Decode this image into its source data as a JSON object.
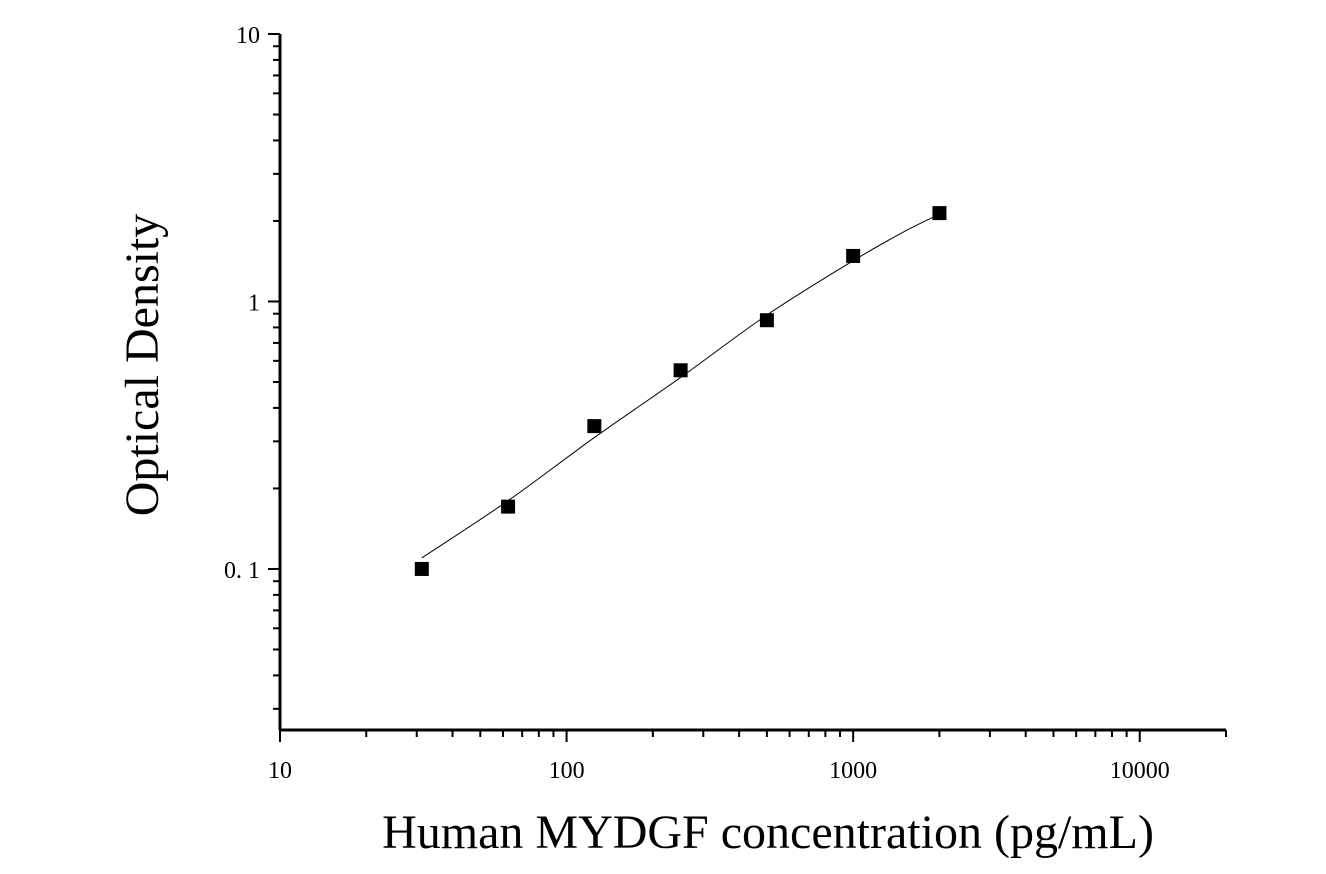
{
  "chart_data": {
    "type": "scatter",
    "xlabel": "Human MYDGF concentration (pg/mL)",
    "ylabel": "Optical Density",
    "xscale": "log",
    "yscale": "log",
    "xlim": [
      10,
      20000
    ],
    "ylim": [
      0.025,
      10
    ],
    "x_ticks": [
      {
        "value": 10,
        "label": "10"
      },
      {
        "value": 100,
        "label": "100"
      },
      {
        "value": 1000,
        "label": "1000"
      },
      {
        "value": 10000,
        "label": "10000"
      }
    ],
    "y_ticks": [
      {
        "value": 0.1,
        "label": "0. 1"
      },
      {
        "value": 1,
        "label": "1"
      },
      {
        "value": 10,
        "label": "10"
      }
    ],
    "grid": false,
    "legend": "none",
    "series": [
      {
        "marker": "square",
        "color": "#000000",
        "x": [
          31.25,
          62.5,
          125,
          250,
          500,
          1000,
          2000
        ],
        "y": [
          0.1,
          0.171,
          0.342,
          0.553,
          0.851,
          1.48,
          2.14
        ]
      }
    ],
    "fit_curve": {
      "color": "#000000",
      "x": [
        31.25,
        62.5,
        125,
        250,
        500,
        1000,
        1500,
        2000
      ],
      "y": [
        0.11,
        0.18,
        0.31,
        0.52,
        0.89,
        1.42,
        1.82,
        2.12
      ]
    }
  }
}
